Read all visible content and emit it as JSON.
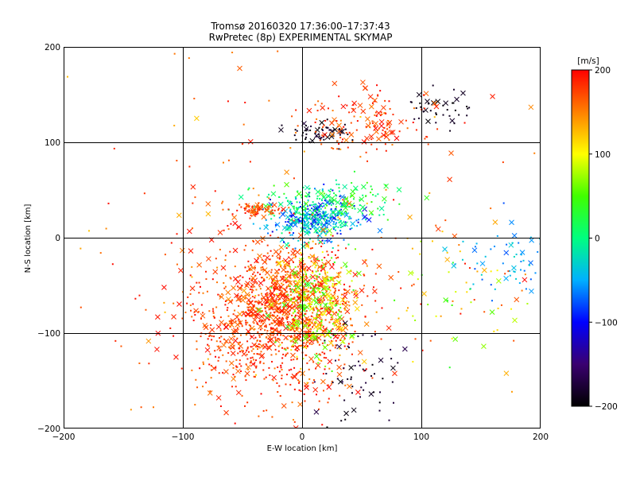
{
  "chart_data": {
    "type": "scatter",
    "title": "Tromsø 20160320 17:36:00–17:37:43",
    "subtitle": "RwPretec (8p) EXPERIMENTAL SKYMAP",
    "xlabel": "E-W location [km]",
    "ylabel": "N-S location [km]",
    "xlim": [
      -200,
      200
    ],
    "ylim": [
      -200,
      200
    ],
    "x_ticks": [
      -200,
      -100,
      0,
      100,
      200
    ],
    "y_ticks": [
      -200,
      -100,
      0,
      100,
      200
    ],
    "grid": true,
    "marker_types": [
      "dot",
      "cross"
    ],
    "colorbar": {
      "label": "[m/s]",
      "min": -200,
      "max": 200,
      "ticks": [
        200,
        100,
        0,
        -100,
        -200
      ],
      "colors": [
        "#000000",
        "#3a0070",
        "#0000ff",
        "#00b0ff",
        "#00ff80",
        "#40ff00",
        "#ffff00",
        "#ff8000",
        "#ff0000"
      ]
    },
    "clusters": [
      {
        "name": "south-west red cloud",
        "cx": -25,
        "cy": -90,
        "sx": 35,
        "sy": 40,
        "n": 900,
        "v_min": 150,
        "v_max": 200
      },
      {
        "name": "central red mass",
        "cx": -5,
        "cy": -60,
        "sx": 25,
        "sy": 25,
        "n": 500,
        "v_min": 140,
        "v_max": 200
      },
      {
        "name": "central yellow-green",
        "cx": 10,
        "cy": -70,
        "sx": 15,
        "sy": 30,
        "n": 300,
        "v_min": 30,
        "v_max": 130
      },
      {
        "name": "central cyan-blue",
        "cx": 10,
        "cy": 20,
        "sx": 18,
        "sy": 12,
        "n": 350,
        "v_min": -120,
        "v_max": 20
      },
      {
        "name": "central green band",
        "cx": 20,
        "cy": 40,
        "sx": 30,
        "sy": 10,
        "n": 150,
        "v_min": -20,
        "v_max": 60
      },
      {
        "name": "west red band",
        "cx": -35,
        "cy": 30,
        "sx": 12,
        "sy": 4,
        "n": 80,
        "v_min": 150,
        "v_max": 200
      },
      {
        "name": "north black arc",
        "cx": 15,
        "cy": 110,
        "sx": 15,
        "sy": 6,
        "n": 60,
        "v_min": -200,
        "v_max": -170
      },
      {
        "name": "north-east black arc",
        "cx": 115,
        "cy": 135,
        "sx": 15,
        "sy": 8,
        "n": 40,
        "v_min": -200,
        "v_max": -180
      },
      {
        "name": "north-east red",
        "cx": 55,
        "cy": 120,
        "sx": 25,
        "sy": 20,
        "n": 150,
        "v_min": 150,
        "v_max": 200
      },
      {
        "name": "south-east black",
        "cx": 45,
        "cy": -140,
        "sx": 18,
        "sy": 25,
        "n": 60,
        "v_min": -200,
        "v_max": -160
      },
      {
        "name": "east cyan",
        "cx": 170,
        "cy": -25,
        "sx": 20,
        "sy": 20,
        "n": 60,
        "v_min": -80,
        "v_max": -20
      },
      {
        "name": "east mixed",
        "cx": 130,
        "cy": -60,
        "sx": 35,
        "sy": 35,
        "n": 60,
        "v_min": 20,
        "v_max": 200
      },
      {
        "name": "scattered background",
        "cx": 0,
        "cy": 0,
        "sx": 110,
        "sy": 110,
        "n": 200,
        "v_min": 120,
        "v_max": 200
      }
    ]
  }
}
